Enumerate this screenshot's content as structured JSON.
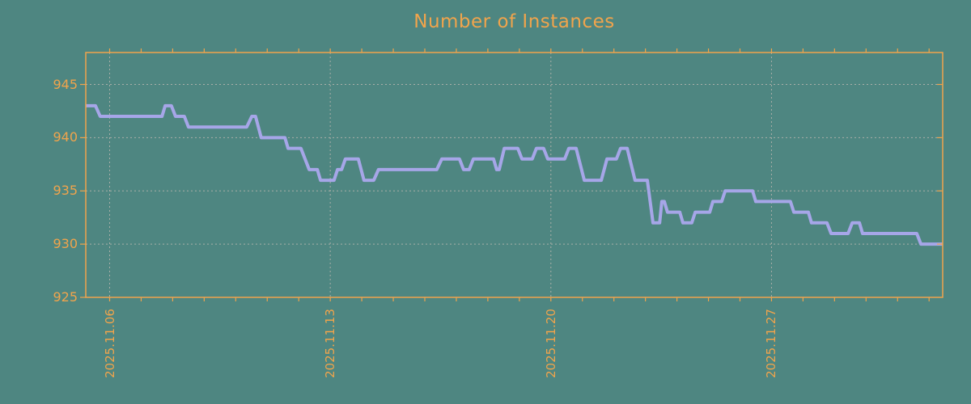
{
  "chart_data": {
    "type": "line",
    "title": "Number of Instances",
    "ylabel": "",
    "xlabel": "",
    "ylim": [
      925,
      948
    ],
    "grid": true,
    "legend": "none",
    "y_axis": {
      "gridline_values": [
        945,
        940,
        935,
        930
      ],
      "tick_labels": [
        {
          "value": 945,
          "label": "945"
        },
        {
          "value": 940,
          "label": "940"
        },
        {
          "value": 935,
          "label": "935"
        },
        {
          "value": 930,
          "label": "930"
        },
        {
          "value": 925,
          "label": "925"
        }
      ]
    },
    "x_axis": {
      "start_day": -0.76,
      "end_day": 26.43,
      "major_ticks": [
        {
          "day": 0,
          "label": "2025.11.06"
        },
        {
          "day": 7,
          "label": "2025.11.13"
        },
        {
          "day": 14,
          "label": "2025.11.20"
        },
        {
          "day": 21,
          "label": "2025.11.27"
        }
      ],
      "minor_tick_days": [
        0,
        1,
        2,
        3,
        4,
        5,
        6,
        7,
        8,
        9,
        10,
        11,
        12,
        13,
        14,
        15,
        16,
        17,
        18,
        19,
        20,
        21,
        22,
        23,
        24,
        25,
        26
      ]
    },
    "series": [
      {
        "name": "instances",
        "points": [
          [
            -0.76,
            943
          ],
          [
            -0.45,
            943
          ],
          [
            -0.3,
            942
          ],
          [
            1.66,
            942
          ],
          [
            1.76,
            943
          ],
          [
            1.96,
            943
          ],
          [
            2.09,
            942
          ],
          [
            2.37,
            942
          ],
          [
            2.5,
            941
          ],
          [
            4.35,
            941
          ],
          [
            4.51,
            942
          ],
          [
            4.63,
            942
          ],
          [
            4.81,
            940
          ],
          [
            5.56,
            940
          ],
          [
            5.66,
            939
          ],
          [
            6.07,
            939
          ],
          [
            6.33,
            937
          ],
          [
            6.59,
            937
          ],
          [
            6.69,
            936
          ],
          [
            7.12,
            936
          ],
          [
            7.23,
            937
          ],
          [
            7.36,
            937
          ],
          [
            7.48,
            938
          ],
          [
            7.89,
            938
          ],
          [
            8.07,
            936
          ],
          [
            8.38,
            936
          ],
          [
            8.53,
            937
          ],
          [
            10.38,
            937
          ],
          [
            10.54,
            938
          ],
          [
            11.1,
            938
          ],
          [
            11.23,
            937
          ],
          [
            11.41,
            937
          ],
          [
            11.54,
            938
          ],
          [
            12.18,
            938
          ],
          [
            12.28,
            937
          ],
          [
            12.36,
            937
          ],
          [
            12.52,
            939
          ],
          [
            12.95,
            939
          ],
          [
            13.08,
            938
          ],
          [
            13.41,
            938
          ],
          [
            13.54,
            939
          ],
          [
            13.77,
            939
          ],
          [
            13.9,
            938
          ],
          [
            14.44,
            938
          ],
          [
            14.57,
            939
          ],
          [
            14.8,
            939
          ],
          [
            15.06,
            936
          ],
          [
            15.6,
            936
          ],
          [
            15.78,
            938
          ],
          [
            16.08,
            938
          ],
          [
            16.21,
            939
          ],
          [
            16.42,
            939
          ],
          [
            16.67,
            936
          ],
          [
            17.06,
            936
          ],
          [
            17.24,
            932
          ],
          [
            17.45,
            932
          ],
          [
            17.52,
            934
          ],
          [
            17.6,
            934
          ],
          [
            17.7,
            933
          ],
          [
            18.09,
            933
          ],
          [
            18.19,
            932
          ],
          [
            18.47,
            932
          ],
          [
            18.58,
            933
          ],
          [
            19.04,
            933
          ],
          [
            19.14,
            934
          ],
          [
            19.42,
            934
          ],
          [
            19.53,
            935
          ],
          [
            20.4,
            935
          ],
          [
            20.5,
            934
          ],
          [
            21.6,
            934
          ],
          [
            21.71,
            933
          ],
          [
            22.17,
            933
          ],
          [
            22.27,
            932
          ],
          [
            22.76,
            932
          ],
          [
            22.89,
            931
          ],
          [
            23.43,
            931
          ],
          [
            23.56,
            932
          ],
          [
            23.79,
            932
          ],
          [
            23.89,
            931
          ],
          [
            25.61,
            931
          ],
          [
            25.74,
            930
          ],
          [
            26.43,
            930
          ]
        ]
      }
    ],
    "colors": {
      "background": "#4E8681",
      "axis": "#F0A44C",
      "line": "#A6A6E8",
      "grid": "#A9AFA8",
      "title": "#F0A44C"
    }
  }
}
